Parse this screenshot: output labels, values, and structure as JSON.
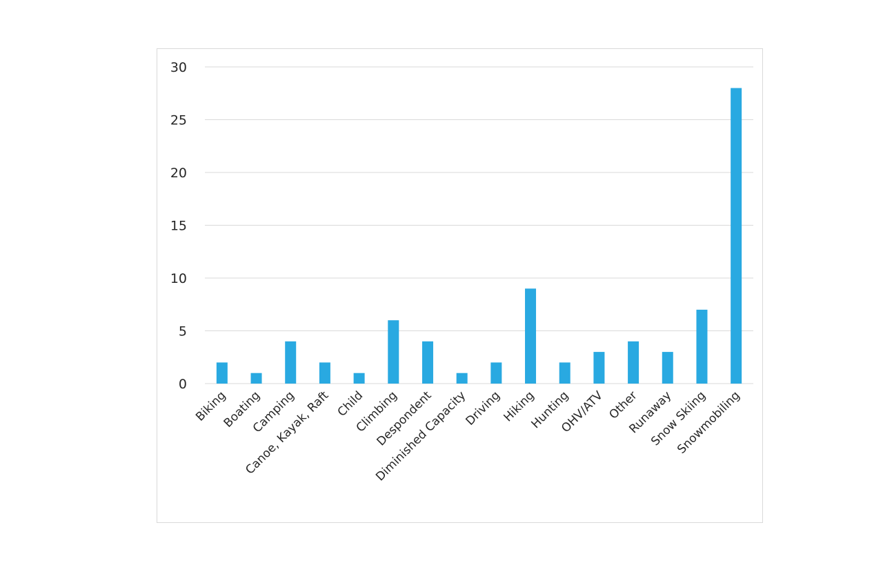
{
  "chart_data": {
    "type": "bar",
    "categories": [
      "Biking",
      "Boating",
      "Camping",
      "Canoe, Kayak, Raft",
      "Child",
      "Climbing",
      "Despondent",
      "Diminished Capacity",
      "Driving",
      "Hiking",
      "Hunting",
      "OHV/ATV",
      "Other",
      "Runaway",
      "Snow Skiing",
      "Snowmobiling"
    ],
    "values": [
      2,
      1,
      4,
      2,
      1,
      6,
      4,
      1,
      2,
      9,
      2,
      3,
      4,
      3,
      7,
      28
    ],
    "yticks": [
      "0",
      "5",
      "10",
      "15",
      "20",
      "25",
      "30"
    ],
    "ylim": [
      0,
      30
    ],
    "grid": true,
    "legend": "none",
    "colors": {
      "bar": "#29a9e1",
      "grid": "#d9d9d9",
      "axis": "#d9d9d9"
    }
  }
}
